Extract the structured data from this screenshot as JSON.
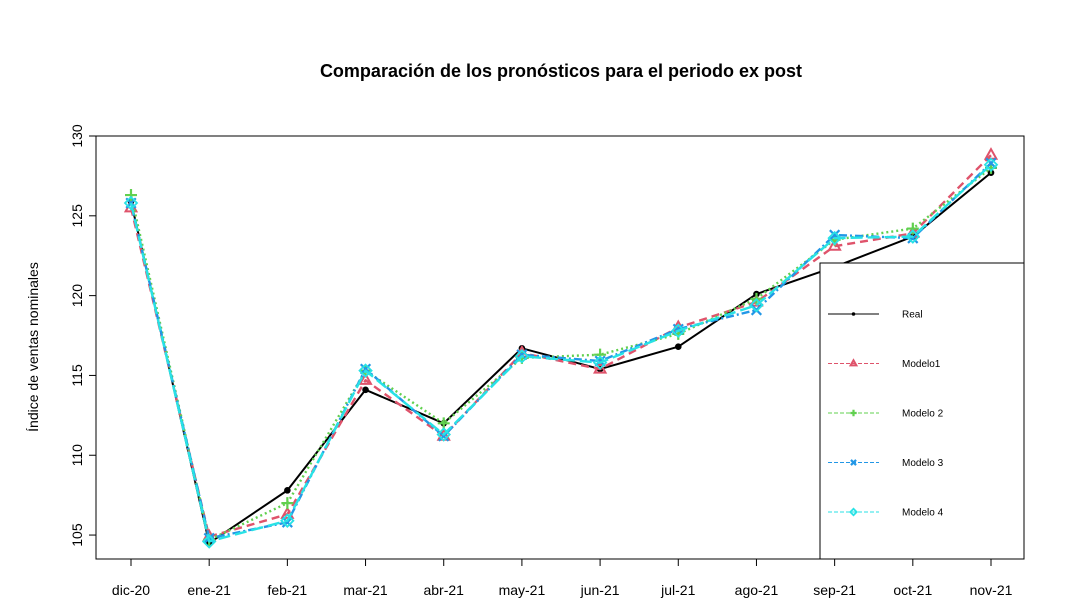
{
  "chart_data": {
    "type": "line",
    "title": "Comparación de los pronósticos para el periodo ex post",
    "xlabel": "",
    "ylabel": "Índice de ventas nominales",
    "categories": [
      "dic-20",
      "ene-21",
      "feb-21",
      "mar-21",
      "abr-21",
      "may-21",
      "jun-21",
      "jul-21",
      "ago-21",
      "sep-21",
      "oct-21",
      "nov-21"
    ],
    "ylim": [
      103.5,
      130
    ],
    "yticks": [
      105,
      110,
      115,
      120,
      125,
      130
    ],
    "grid": false,
    "legend_position": "bottom-right",
    "series": [
      {
        "name": "Real",
        "color": "#000000",
        "dash": "",
        "marker": "dot",
        "values": [
          125.9,
          104.5,
          107.8,
          114.1,
          112.0,
          116.7,
          115.4,
          116.8,
          120.1,
          121.8,
          123.7,
          127.7
        ]
      },
      {
        "name": "Modelo1",
        "color": "#DF536B",
        "dash": "8 5",
        "marker": "triangle",
        "values": [
          125.5,
          104.9,
          106.3,
          114.7,
          111.2,
          116.4,
          115.4,
          118.0,
          119.6,
          123.1,
          123.9,
          128.8
        ]
      },
      {
        "name": "Modelo 2",
        "color": "#61D04F",
        "dash": "2 3",
        "marker": "plus",
        "values": [
          126.3,
          104.7,
          107.0,
          115.3,
          112.0,
          116.1,
          116.3,
          117.6,
          119.8,
          123.5,
          124.2,
          128.0
        ]
      },
      {
        "name": "Modelo 3",
        "color": "#2297E6",
        "dash": "8 3 2 3",
        "marker": "cross",
        "values": [
          125.8,
          104.8,
          105.8,
          115.4,
          111.2,
          116.3,
          115.9,
          117.9,
          119.1,
          123.8,
          123.6,
          128.3
        ]
      },
      {
        "name": "Modelo 4",
        "color": "#28E2E5",
        "dash": "12 5",
        "marker": "diamond",
        "values": [
          125.8,
          104.6,
          105.9,
          115.3,
          111.3,
          116.2,
          115.8,
          117.8,
          119.4,
          123.6,
          123.7,
          128.2
        ]
      }
    ]
  }
}
